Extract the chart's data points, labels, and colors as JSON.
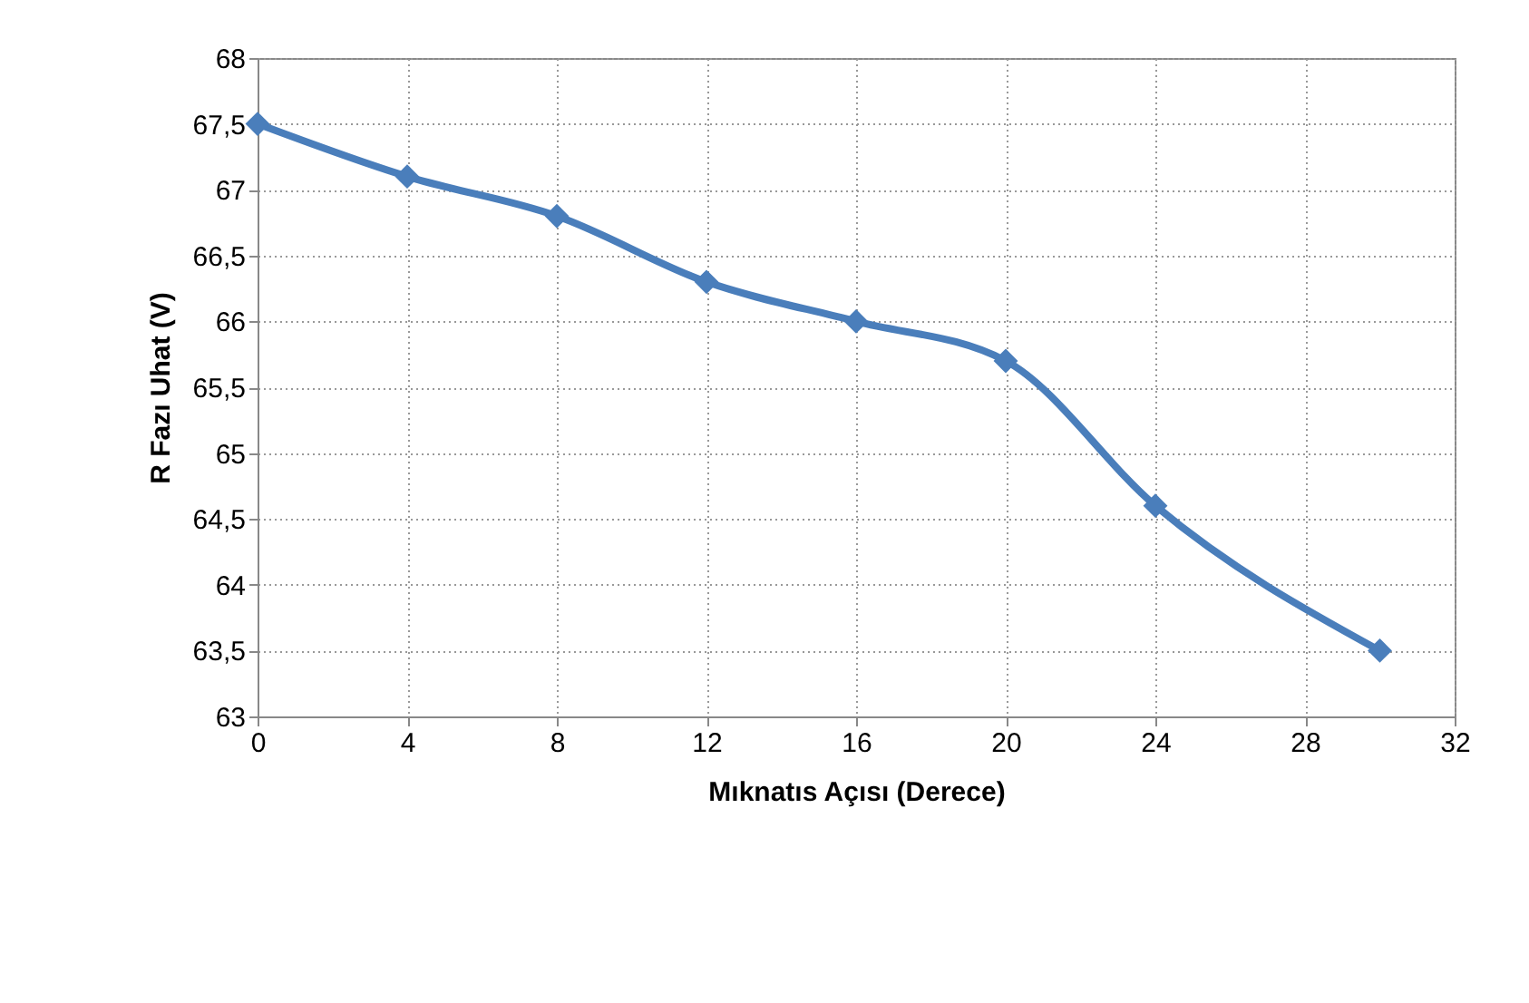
{
  "chart_data": {
    "type": "line",
    "xlabel": "Mıknatıs Açısı (Derece)",
    "ylabel": "R Fazı Uhat (V)",
    "x": [
      0,
      4,
      8,
      12,
      16,
      20,
      24,
      30
    ],
    "series": [
      {
        "color": "#4a7ebb",
        "values": [
          67.5,
          67.1,
          66.8,
          66.3,
          66.0,
          65.7,
          64.6,
          63.5
        ]
      }
    ],
    "xlim": [
      0,
      32
    ],
    "xticks": [
      0,
      4,
      8,
      12,
      16,
      20,
      24,
      28,
      32
    ],
    "ylim": [
      63,
      68
    ],
    "yticks": [
      63,
      {
        "value": 63.5,
        "label": "63,5"
      },
      64,
      {
        "value": 64.5,
        "label": "64,5"
      },
      65,
      {
        "value": 65.5,
        "label": "65,5"
      },
      66,
      {
        "value": 66.5,
        "label": "66,5"
      },
      67,
      {
        "value": 67.5,
        "label": "67,5"
      },
      68
    ],
    "grid": true,
    "marker": "diamond",
    "line_style": "solid",
    "legend": false
  }
}
